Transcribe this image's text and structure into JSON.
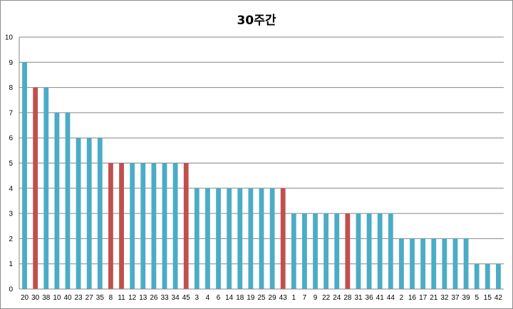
{
  "chart_data": {
    "type": "bar",
    "title": "30주간",
    "xlabel": "",
    "ylabel": "",
    "ylim": [
      0,
      10
    ],
    "yticks": [
      0,
      1,
      2,
      3,
      4,
      5,
      6,
      7,
      8,
      9,
      10
    ],
    "grid": true,
    "categories": [
      "20",
      "30",
      "38",
      "10",
      "40",
      "23",
      "27",
      "35",
      "8",
      "11",
      "12",
      "13",
      "26",
      "33",
      "34",
      "45",
      "3",
      "4",
      "6",
      "14",
      "18",
      "19",
      "25",
      "29",
      "43",
      "1",
      "7",
      "9",
      "22",
      "24",
      "28",
      "31",
      "36",
      "41",
      "44",
      "2",
      "16",
      "17",
      "21",
      "32",
      "37",
      "39",
      "5",
      "15",
      "42"
    ],
    "values": [
      9,
      8,
      8,
      7,
      7,
      6,
      6,
      6,
      5,
      5,
      5,
      5,
      5,
      5,
      5,
      5,
      4,
      4,
      4,
      4,
      4,
      4,
      4,
      4,
      4,
      3,
      3,
      3,
      3,
      3,
      3,
      3,
      3,
      3,
      3,
      2,
      2,
      2,
      2,
      2,
      2,
      2,
      1,
      1,
      1
    ],
    "highlighted": [
      false,
      true,
      false,
      false,
      false,
      false,
      false,
      false,
      true,
      true,
      false,
      false,
      false,
      false,
      false,
      true,
      false,
      false,
      false,
      false,
      false,
      false,
      false,
      false,
      true,
      false,
      false,
      false,
      false,
      false,
      true,
      false,
      false,
      false,
      false,
      false,
      false,
      false,
      false,
      false,
      false,
      false,
      false,
      false,
      false
    ],
    "colors": {
      "bar": "#4bacc6",
      "highlight": "#c0504d",
      "grid": "#868686",
      "axis": "#868686"
    }
  }
}
